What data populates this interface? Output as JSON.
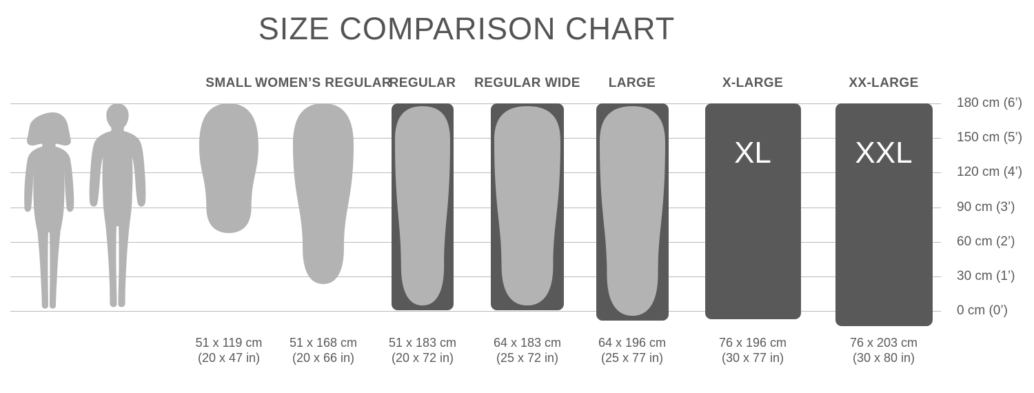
{
  "title": "SIZE COMPARISON CHART",
  "colors": {
    "pad_light": "#b3b3b4",
    "pad_dark": "#595959",
    "text": "#58595b",
    "grid": "#b9b9b9",
    "letter": "#ffffff",
    "background": "#ffffff"
  },
  "figures": [
    {
      "name": "woman-silhouette"
    },
    {
      "name": "man-silhouette"
    }
  ],
  "chart_data": {
    "type": "table",
    "title": "SIZE COMPARISON CHART",
    "description_axis": {
      "labels": [
        "180 cm (6’)",
        "150 cm (5’)",
        "120 cm (4’)",
        "90 cm (3’)",
        "60 cm (2’)",
        "30 cm (1’)",
        "0 cm (0’)"
      ],
      "values_cm": [
        180,
        150,
        120,
        90,
        60,
        30,
        0
      ],
      "grid": "on",
      "position": "right"
    },
    "sizes": [
      {
        "name": "SMALL",
        "code": "S",
        "dim_cm": "51 x 119 cm",
        "dim_in": "(20 x 47 in)",
        "width_cm": 51,
        "length_cm": 119,
        "shape": "mummy"
      },
      {
        "name": "WOMEN’S REGULAR",
        "code": "WR",
        "dim_cm": "51 x 168 cm",
        "dim_in": "(20 x 66 in)",
        "width_cm": 51,
        "length_cm": 168,
        "shape": "mummy"
      },
      {
        "name": "REGULAR",
        "code": "R",
        "dim_cm": "51 x 183 cm",
        "dim_in": "(20 x 72 in)",
        "width_cm": 51,
        "length_cm": 183,
        "shape": "mummy-in-rect"
      },
      {
        "name": "REGULAR WIDE",
        "code": "RW",
        "dim_cm": "64 x 183 cm",
        "dim_in": "(25 x 72 in)",
        "width_cm": 64,
        "length_cm": 183,
        "shape": "mummy-in-rect"
      },
      {
        "name": "LARGE",
        "code": "L",
        "dim_cm": "64 x 196 cm",
        "dim_in": "(25 x 77 in)",
        "width_cm": 64,
        "length_cm": 196,
        "shape": "mummy-in-rect"
      },
      {
        "name": "X-LARGE",
        "code": "XL",
        "dim_cm": "76 x 196 cm",
        "dim_in": "(30 x 77 in)",
        "width_cm": 76,
        "length_cm": 196,
        "shape": "rect"
      },
      {
        "name": "XX-LARGE",
        "code": "XXL",
        "dim_cm": "76 x 203 cm",
        "dim_in": "(30 x 80 in)",
        "width_cm": 76,
        "length_cm": 203,
        "shape": "rect"
      }
    ]
  }
}
